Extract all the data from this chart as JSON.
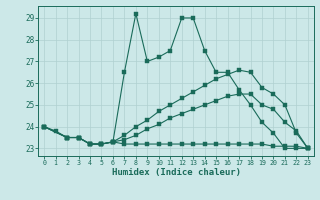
{
  "xlabel": "Humidex (Indice chaleur)",
  "bg_color": "#cce8e8",
  "grid_color": "#b0d0d0",
  "line_color": "#1a6b5a",
  "xlim_min": -0.5,
  "xlim_max": 23.5,
  "ylim_min": 22.65,
  "ylim_max": 29.55,
  "yticks": [
    23,
    24,
    25,
    26,
    27,
    28,
    29
  ],
  "xticks": [
    0,
    1,
    2,
    3,
    4,
    5,
    6,
    7,
    8,
    9,
    10,
    11,
    12,
    13,
    14,
    15,
    16,
    17,
    18,
    19,
    20,
    21,
    22,
    23
  ],
  "lines": [
    {
      "x": [
        0,
        1,
        2,
        3,
        4,
        5,
        6,
        7,
        8,
        9,
        10,
        11,
        12,
        13,
        14,
        15,
        16,
        17,
        18,
        19,
        20,
        21,
        22,
        23
      ],
      "y": [
        24.0,
        23.8,
        23.5,
        23.5,
        23.2,
        23.2,
        23.3,
        26.5,
        29.2,
        27.0,
        27.2,
        27.5,
        29.0,
        29.0,
        27.5,
        26.5,
        26.5,
        25.7,
        25.0,
        24.2,
        23.7,
        23.0,
        23.0,
        23.0
      ]
    },
    {
      "x": [
        0,
        2,
        3,
        4,
        5,
        6,
        7,
        8,
        9,
        10,
        11,
        12,
        13,
        14,
        15,
        16,
        17,
        18,
        19,
        20,
        21,
        22,
        23
      ],
      "y": [
        24.0,
        23.5,
        23.5,
        23.2,
        23.2,
        23.3,
        23.6,
        24.0,
        24.3,
        24.7,
        25.0,
        25.3,
        25.6,
        25.9,
        26.2,
        26.4,
        26.6,
        26.5,
        25.8,
        25.5,
        25.0,
        23.7,
        23.0
      ]
    },
    {
      "x": [
        0,
        2,
        3,
        4,
        5,
        6,
        7,
        8,
        9,
        10,
        11,
        12,
        13,
        14,
        15,
        16,
        17,
        18,
        19,
        20,
        21,
        22,
        23
      ],
      "y": [
        24.0,
        23.5,
        23.5,
        23.2,
        23.2,
        23.3,
        23.4,
        23.6,
        23.9,
        24.1,
        24.4,
        24.6,
        24.8,
        25.0,
        25.2,
        25.4,
        25.5,
        25.5,
        25.0,
        24.8,
        24.2,
        23.8,
        23.0
      ]
    },
    {
      "x": [
        0,
        2,
        3,
        4,
        5,
        6,
        7,
        8,
        9,
        10,
        11,
        12,
        13,
        14,
        15,
        16,
        17,
        18,
        19,
        20,
        21,
        22,
        23
      ],
      "y": [
        24.0,
        23.5,
        23.5,
        23.2,
        23.2,
        23.3,
        23.2,
        23.2,
        23.2,
        23.2,
        23.2,
        23.2,
        23.2,
        23.2,
        23.2,
        23.2,
        23.2,
        23.2,
        23.2,
        23.1,
        23.1,
        23.1,
        23.0
      ]
    }
  ]
}
